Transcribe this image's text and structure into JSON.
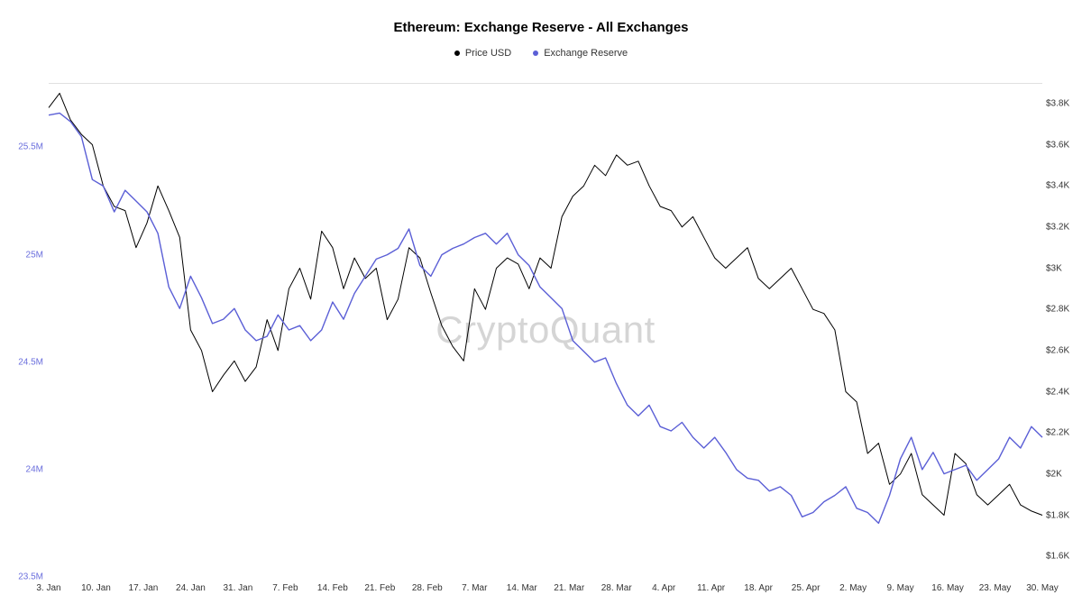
{
  "chart": {
    "type": "line",
    "title": "Ethereum: Exchange Reserve - All Exchanges",
    "title_fontsize": 15,
    "title_fontweight": 700,
    "watermark": "CryptoQuant",
    "watermark_color": "#d5d5d5",
    "watermark_fontsize": 42,
    "background_color": "#ffffff",
    "grid_color": "#e9e9e9",
    "legend": [
      {
        "label": "Price USD",
        "color": "#000000"
      },
      {
        "label": "Exchange Reserve",
        "color": "#5b5fd6"
      }
    ],
    "x_axis": {
      "labels": [
        "3. Jan",
        "10. Jan",
        "17. Jan",
        "24. Jan",
        "31. Jan",
        "7. Feb",
        "14. Feb",
        "21. Feb",
        "28. Feb",
        "7. Mar",
        "14. Mar",
        "21. Mar",
        "28. Mar",
        "4. Apr",
        "11. Apr",
        "18. Apr",
        "25. Apr",
        "2. May",
        "9. May",
        "16. May",
        "23. May",
        "30. May"
      ],
      "label_fontsize": 10,
      "label_color": "#333333"
    },
    "y_left": {
      "min": 23.5,
      "max": 25.8,
      "ticks": [
        23.5,
        24,
        24.5,
        25,
        25.5
      ],
      "tick_labels": [
        "23.5M",
        "24M",
        "24.5M",
        "25M",
        "25.5M"
      ],
      "label_fontsize": 10,
      "label_color": "#6b6fdd"
    },
    "y_right": {
      "min": 1500,
      "max": 3900,
      "ticks": [
        1600,
        1800,
        2000,
        2200,
        2400,
        2600,
        2800,
        3000,
        3200,
        3400,
        3600,
        3800
      ],
      "tick_labels": [
        "$1.6K",
        "$1.8K",
        "$2K",
        "$2.2K",
        "$2.4K",
        "$2.6K",
        "$2.8K",
        "$3K",
        "$3.2K",
        "$3.4K",
        "$3.6K",
        "$3.8K"
      ],
      "label_fontsize": 10,
      "label_color": "#333333"
    },
    "series_price": {
      "name": "Price USD",
      "color": "#000000",
      "line_width": 1,
      "data": [
        3780,
        3850,
        3720,
        3650,
        3600,
        3400,
        3300,
        3280,
        3100,
        3220,
        3400,
        3280,
        3150,
        2700,
        2600,
        2400,
        2480,
        2550,
        2450,
        2520,
        2750,
        2600,
        2900,
        3000,
        2850,
        3180,
        3100,
        2900,
        3050,
        2950,
        3000,
        2750,
        2850,
        3100,
        3050,
        2880,
        2720,
        2620,
        2550,
        2900,
        2800,
        3000,
        3050,
        3020,
        2900,
        3050,
        3000,
        3250,
        3350,
        3400,
        3500,
        3450,
        3550,
        3500,
        3520,
        3400,
        3300,
        3280,
        3200,
        3250,
        3150,
        3050,
        3000,
        3050,
        3100,
        2950,
        2900,
        2950,
        3000,
        2900,
        2800,
        2780,
        2700,
        2400,
        2350,
        2100,
        2150,
        1950,
        2000,
        2100,
        1900,
        1850,
        1800,
        2100,
        2050,
        1900,
        1850,
        1900,
        1950,
        1850,
        1820,
        1800
      ]
    },
    "series_reserve": {
      "name": "Exchange Reserve",
      "color": "#5b5fd6",
      "line_width": 1.4,
      "data": [
        25.65,
        25.66,
        25.62,
        25.55,
        25.35,
        25.32,
        25.2,
        25.3,
        25.25,
        25.2,
        25.1,
        24.85,
        24.75,
        24.9,
        24.8,
        24.68,
        24.7,
        24.75,
        24.65,
        24.6,
        24.62,
        24.72,
        24.65,
        24.67,
        24.6,
        24.65,
        24.78,
        24.7,
        24.82,
        24.9,
        24.98,
        25.0,
        25.03,
        25.12,
        24.95,
        24.9,
        25.0,
        25.03,
        25.05,
        25.08,
        25.1,
        25.05,
        25.1,
        25.0,
        24.95,
        24.85,
        24.8,
        24.75,
        24.6,
        24.55,
        24.5,
        24.52,
        24.4,
        24.3,
        24.25,
        24.3,
        24.2,
        24.18,
        24.22,
        24.15,
        24.1,
        24.15,
        24.08,
        24.0,
        23.96,
        23.95,
        23.9,
        23.92,
        23.88,
        23.78,
        23.8,
        23.85,
        23.88,
        23.92,
        23.82,
        23.8,
        23.75,
        23.88,
        24.05,
        24.15,
        24.0,
        24.08,
        23.98,
        24.0,
        24.02,
        23.95,
        24.0,
        24.05,
        24.15,
        24.1,
        24.2,
        24.15
      ]
    }
  }
}
